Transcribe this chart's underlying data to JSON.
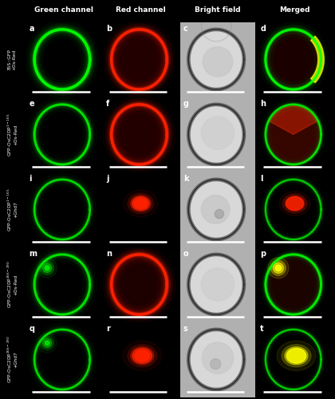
{
  "title": "",
  "col_headers": [
    "Green channel",
    "Red channel",
    "Bright field",
    "Merged"
  ],
  "row_labels": [
    "35S::GFP\n+Ds-Red",
    "GFP-OsC2DP^{1-165}\n+Ds-Red",
    "GFP-OsC2DP^{1-165}\n+Ghd7",
    "GFP-OsC2DP^{166-290}\n+Ds-Red",
    "GFP-OsC2DP^{166-290}\n+Ghd7"
  ],
  "panel_labels": [
    "a",
    "b",
    "c",
    "d",
    "e",
    "f",
    "g",
    "h",
    "i",
    "j",
    "k",
    "l",
    "m",
    "n",
    "o",
    "p",
    "q",
    "r",
    "s",
    "t"
  ],
  "n_rows": 5,
  "n_cols": 4,
  "background": "#000000"
}
